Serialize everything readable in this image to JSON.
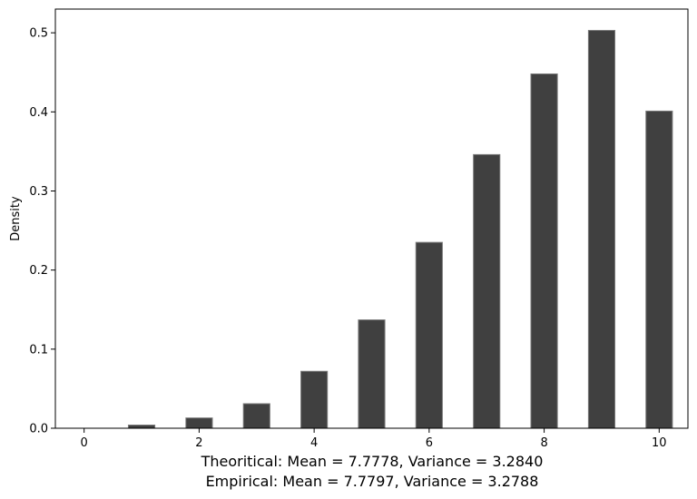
{
  "chart_data": {
    "type": "bar",
    "title": "",
    "xlabel": "",
    "ylabel": "Density",
    "x": [
      0,
      1,
      2,
      3,
      4,
      5,
      6,
      7,
      8,
      9,
      10
    ],
    "values": [
      0.0,
      0.004,
      0.013,
      0.031,
      0.072,
      0.137,
      0.235,
      0.346,
      0.448,
      0.503,
      0.401
    ],
    "xlim": [
      -0.5,
      10.5
    ],
    "ylim": [
      0,
      0.53
    ],
    "xticks": [
      0,
      2,
      4,
      6,
      8,
      10
    ],
    "xtick_labels": [
      "0",
      "2",
      "4",
      "6",
      "8",
      "10"
    ],
    "yticks": [
      0.0,
      0.1,
      0.2,
      0.3,
      0.4,
      0.5
    ],
    "ytick_labels": [
      "0.0",
      "0.1",
      "0.2",
      "0.3",
      "0.4",
      "0.5"
    ],
    "bar_color": "#404040",
    "bar_edge_color": "#7a7a7a",
    "grid": false,
    "legend": "none",
    "caption_lines": [
      "Theoritical: Mean = 7.7778, Variance = 3.2840",
      "Empirical: Mean = 7.7797, Variance = 3.2788"
    ]
  }
}
